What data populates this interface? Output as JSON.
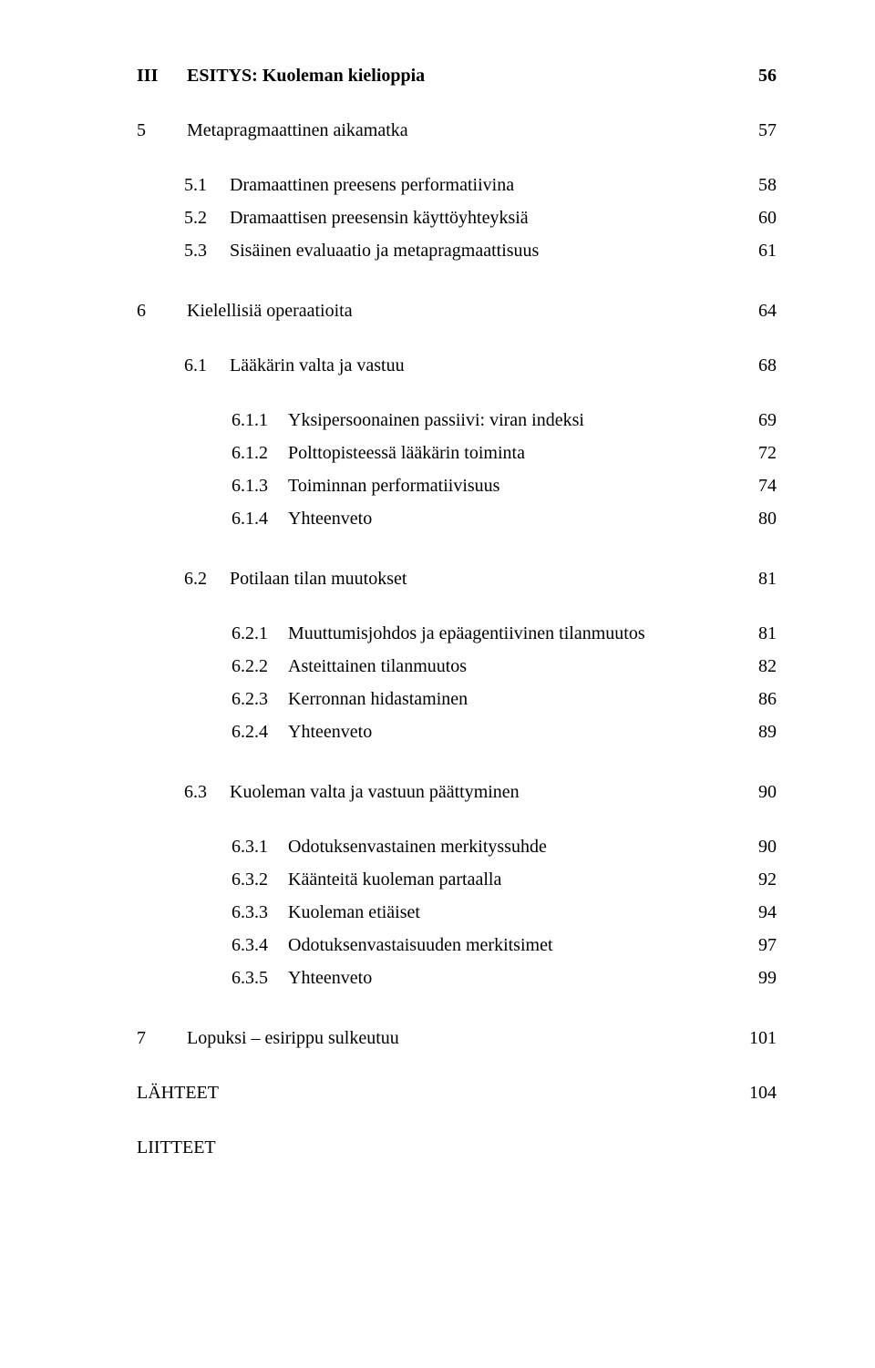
{
  "part": {
    "num": "III",
    "title": "ESITYS: Kuoleman kielioppia",
    "page": "56"
  },
  "ch5": {
    "num": "5",
    "title": "Metapragmaattinen aikamatka",
    "page": "57",
    "sections": [
      {
        "num": "5.1",
        "title": "Dramaattinen preesens performatiivina",
        "page": "58"
      },
      {
        "num": "5.2",
        "title": "Dramaattisen preesensin käyttöyhteyksiä",
        "page": "60"
      },
      {
        "num": "5.3",
        "title": "Sisäinen evaluaatio ja metapragmaattisuus",
        "page": "61"
      }
    ]
  },
  "ch6": {
    "num": "6",
    "title": "Kielellisiä operaatioita",
    "page": "64",
    "s1": {
      "num": "6.1",
      "title": "Lääkärin valta ja vastuu",
      "page": "68",
      "subs": [
        {
          "num": "6.1.1",
          "title": "Yksipersoonainen passiivi: viran indeksi",
          "page": "69"
        },
        {
          "num": "6.1.2",
          "title": "Polttopisteessä lääkärin toiminta",
          "page": "72"
        },
        {
          "num": "6.1.3",
          "title": "Toiminnan performatiivisuus",
          "page": "74"
        },
        {
          "num": "6.1.4",
          "title": "Yhteenveto",
          "page": "80"
        }
      ]
    },
    "s2": {
      "num": "6.2",
      "title": "Potilaan tilan muutokset",
      "page": "81",
      "subs": [
        {
          "num": "6.2.1",
          "title": "Muuttumisjohdos ja epäagentiivinen tilanmuutos",
          "page": "81"
        },
        {
          "num": "6.2.2",
          "title": "Asteittainen tilanmuutos",
          "page": "82"
        },
        {
          "num": "6.2.3",
          "title": "Kerronnan hidastaminen",
          "page": "86"
        },
        {
          "num": "6.2.4",
          "title": "Yhteenveto",
          "page": "89"
        }
      ]
    },
    "s3": {
      "num": "6.3",
      "title": "Kuoleman valta ja vastuun päättyminen",
      "page": "90",
      "subs": [
        {
          "num": "6.3.1",
          "title": "Odotuksenvastainen merkityssuhde",
          "page": "90"
        },
        {
          "num": "6.3.2",
          "title": "Käänteitä kuoleman partaalla",
          "page": "92"
        },
        {
          "num": "6.3.3",
          "title": "Kuoleman etiäiset",
          "page": "94"
        },
        {
          "num": "6.3.4",
          "title": "Odotuksenvastaisuuden merkitsimet",
          "page": "97"
        },
        {
          "num": "6.3.5",
          "title": "Yhteenveto",
          "page": "99"
        }
      ]
    }
  },
  "ch7": {
    "num": "7",
    "title": "Lopuksi – esirippu sulkeutuu",
    "page": "101"
  },
  "refs": {
    "title": "LÄHTEET",
    "page": "104"
  },
  "appendix": {
    "title": "LIITTEET"
  }
}
